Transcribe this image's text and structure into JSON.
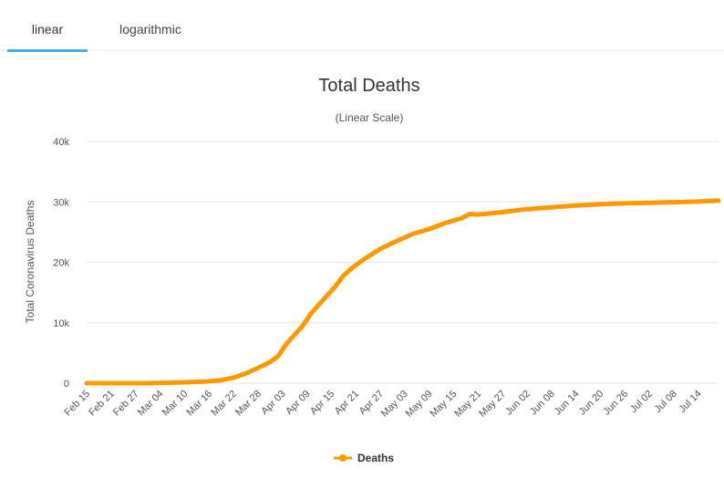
{
  "tabs": [
    {
      "label": "linear",
      "active": true
    },
    {
      "label": "logarithmic",
      "active": false
    }
  ],
  "colors": {
    "accent": "#38b6e0",
    "series": "#ff9900"
  },
  "chart_data": {
    "type": "line",
    "title": "Total Deaths",
    "subtitle": "(Linear Scale)",
    "ylabel": "Total Coronavirus Deaths",
    "xlabel": "",
    "ylim": [
      0,
      40000
    ],
    "yticks": [
      {
        "value": 0,
        "label": "0"
      },
      {
        "value": 10000,
        "label": "10k"
      },
      {
        "value": 20000,
        "label": "20k"
      },
      {
        "value": 30000,
        "label": "30k"
      },
      {
        "value": 40000,
        "label": "40k"
      }
    ],
    "x_range": [
      "Feb 15",
      "Jul 19"
    ],
    "x_tick_labels": [
      "Feb 15",
      "Feb 21",
      "Feb 27",
      "Mar 04",
      "Mar 10",
      "Mar 16",
      "Mar 22",
      "Mar 28",
      "Apr 03",
      "Apr 09",
      "Apr 15",
      "Apr 21",
      "Apr 27",
      "May 03",
      "May 09",
      "May 15",
      "May 21",
      "May 27",
      "Jun 02",
      "Jun 08",
      "Jun 14",
      "Jun 20",
      "Jun 26",
      "Jul 02",
      "Jul 08",
      "Jul 14"
    ],
    "grid": true,
    "legend_position": "bottom-center",
    "series": [
      {
        "name": "Deaths",
        "color": "#ff9900",
        "points": [
          {
            "x": "Feb 15",
            "y": 0
          },
          {
            "x": "Mar 01",
            "y": 0
          },
          {
            "x": "Mar 10",
            "y": 150
          },
          {
            "x": "Mar 16",
            "y": 300
          },
          {
            "x": "Mar 19",
            "y": 500
          },
          {
            "x": "Mar 22",
            "y": 900
          },
          {
            "x": "Mar 25",
            "y": 1600
          },
          {
            "x": "Mar 28",
            "y": 2500
          },
          {
            "x": "Mar 31",
            "y": 3500
          },
          {
            "x": "Apr 02",
            "y": 4500
          },
          {
            "x": "Apr 04",
            "y": 6500
          },
          {
            "x": "Apr 06",
            "y": 8000
          },
          {
            "x": "Apr 08",
            "y": 9500
          },
          {
            "x": "Apr 10",
            "y": 11500
          },
          {
            "x": "Apr 12",
            "y": 13000
          },
          {
            "x": "Apr 14",
            "y": 14500
          },
          {
            "x": "Apr 16",
            "y": 16000
          },
          {
            "x": "Apr 18",
            "y": 17800
          },
          {
            "x": "Apr 20",
            "y": 19000
          },
          {
            "x": "Apr 23",
            "y": 20500
          },
          {
            "x": "Apr 27",
            "y": 22200
          },
          {
            "x": "May 01",
            "y": 23500
          },
          {
            "x": "May 05",
            "y": 24700
          },
          {
            "x": "May 09",
            "y": 25500
          },
          {
            "x": "May 13",
            "y": 26500
          },
          {
            "x": "May 17",
            "y": 27300
          },
          {
            "x": "May 19",
            "y": 28000
          },
          {
            "x": "May 21",
            "y": 27900
          },
          {
            "x": "May 27",
            "y": 28300
          },
          {
            "x": "Jun 02",
            "y": 28800
          },
          {
            "x": "Jun 08",
            "y": 29100
          },
          {
            "x": "Jun 14",
            "y": 29400
          },
          {
            "x": "Jun 20",
            "y": 29600
          },
          {
            "x": "Jun 26",
            "y": 29750
          },
          {
            "x": "Jul 02",
            "y": 29850
          },
          {
            "x": "Jul 08",
            "y": 29950
          },
          {
            "x": "Jul 14",
            "y": 30050
          },
          {
            "x": "Jul 19",
            "y": 30200
          }
        ]
      }
    ]
  }
}
